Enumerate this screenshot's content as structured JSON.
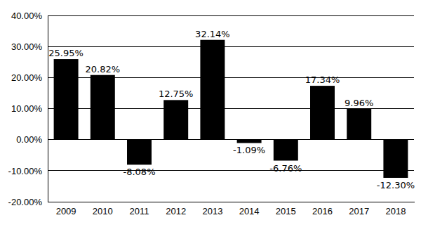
{
  "chart_data": {
    "type": "bar",
    "categories": [
      "2009",
      "2010",
      "2011",
      "2012",
      "2013",
      "2014",
      "2015",
      "2016",
      "2017",
      "2018"
    ],
    "values": [
      25.95,
      20.82,
      -8.08,
      12.75,
      32.14,
      -1.09,
      -6.76,
      17.34,
      9.96,
      -12.3
    ],
    "value_labels": [
      "25.95%",
      "20.82%",
      "-8.08%",
      "12.75%",
      "32.14%",
      "-1.09%",
      "-6.76%",
      "17.34%",
      "9.96%",
      "-12.30%"
    ],
    "color": "#000000",
    "ylim": [
      -20,
      40
    ],
    "yticks": [
      {
        "value": -20,
        "label": "-20.00%"
      },
      {
        "value": -10,
        "label": "-10.00%"
      },
      {
        "value": 0,
        "label": "0.00%"
      },
      {
        "value": 10,
        "label": "10.00%"
      },
      {
        "value": 20,
        "label": "20.00%"
      },
      {
        "value": 30,
        "label": "30.00%"
      },
      {
        "value": 40,
        "label": "40.00%"
      }
    ],
    "grid": true,
    "data_labels": true
  }
}
